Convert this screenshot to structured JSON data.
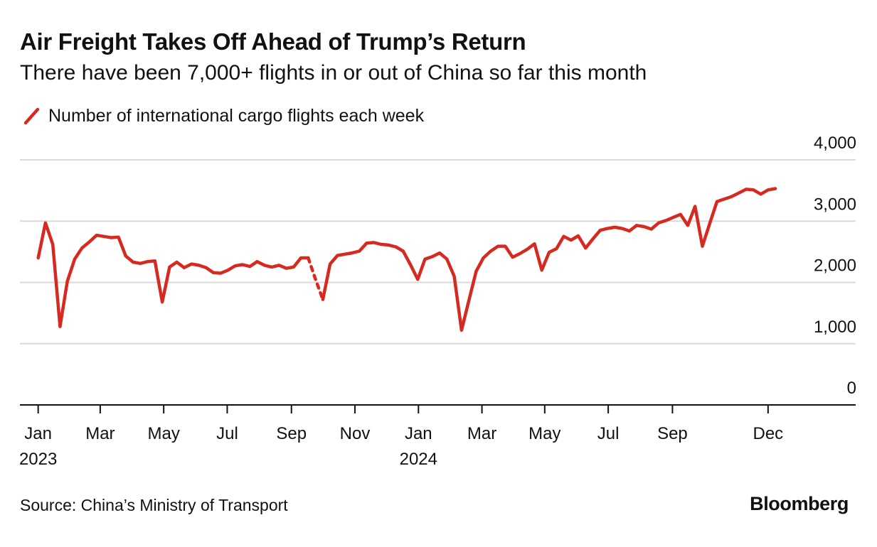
{
  "header": {
    "title": "Air Freight Takes Off Ahead of Trump’s Return",
    "subtitle": "There have been 7,000+ flights in or out of China so far this month"
  },
  "footer": {
    "source": "Source: China’s Ministry of Transport",
    "brand": "Bloomberg"
  },
  "colors": {
    "series": "#d62a20",
    "grid": "#d9d9d9",
    "axis": "#111111",
    "text": "#111111"
  },
  "chart_data": {
    "type": "line",
    "title": "Air Freight Takes Off Ahead of Trump’s Return",
    "subtitle": "There have been 7,000+ flights in or out of China so far this month",
    "xlabel": "",
    "ylabel": "",
    "ylim": [
      0,
      4000
    ],
    "xlim_weeks": [
      -2.5,
      112
    ],
    "grid": true,
    "legend_position": "top-left",
    "y_ticks": [
      {
        "value": 0,
        "label": "0"
      },
      {
        "value": 1000,
        "label": "1,000"
      },
      {
        "value": 2000,
        "label": "2,000"
      },
      {
        "value": 3000,
        "label": "3,000"
      },
      {
        "value": 4000,
        "label": "4,000"
      }
    ],
    "x_ticks": [
      {
        "week": 0,
        "label": "Jan",
        "year": "2023"
      },
      {
        "week": 8.5,
        "label": "Mar",
        "year": ""
      },
      {
        "week": 17.2,
        "label": "May",
        "year": ""
      },
      {
        "week": 25.9,
        "label": "Jul",
        "year": ""
      },
      {
        "week": 34.7,
        "label": "Sep",
        "year": ""
      },
      {
        "week": 43.4,
        "label": "Nov",
        "year": ""
      },
      {
        "week": 52.1,
        "label": "Jan",
        "year": "2024"
      },
      {
        "week": 60.8,
        "label": "Mar",
        "year": ""
      },
      {
        "week": 69.4,
        "label": "May",
        "year": ""
      },
      {
        "week": 78.1,
        "label": "Jul",
        "year": ""
      },
      {
        "week": 86.9,
        "label": "Sep",
        "year": ""
      },
      {
        "week": 100.0,
        "label": "Dec",
        "year": ""
      }
    ],
    "series": [
      {
        "name": "Number of international cargo flights each week",
        "gaps": [
          [
            37,
            39
          ]
        ],
        "points": [
          [
            0,
            2400
          ],
          [
            1,
            2970
          ],
          [
            2,
            2620
          ],
          [
            3,
            1280
          ],
          [
            4,
            2020
          ],
          [
            5,
            2380
          ],
          [
            6,
            2560
          ],
          [
            7,
            2660
          ],
          [
            8,
            2770
          ],
          [
            9,
            2750
          ],
          [
            10,
            2730
          ],
          [
            11,
            2740
          ],
          [
            12,
            2430
          ],
          [
            13,
            2330
          ],
          [
            14,
            2310
          ],
          [
            15,
            2340
          ],
          [
            16,
            2350
          ],
          [
            17,
            1680
          ],
          [
            18,
            2250
          ],
          [
            19,
            2330
          ],
          [
            20,
            2240
          ],
          [
            21,
            2300
          ],
          [
            22,
            2280
          ],
          [
            23,
            2240
          ],
          [
            24,
            2160
          ],
          [
            25,
            2150
          ],
          [
            26,
            2200
          ],
          [
            27,
            2270
          ],
          [
            28,
            2290
          ],
          [
            29,
            2260
          ],
          [
            30,
            2340
          ],
          [
            31,
            2280
          ],
          [
            32,
            2250
          ],
          [
            33,
            2280
          ],
          [
            34,
            2230
          ],
          [
            35,
            2250
          ],
          [
            36,
            2400
          ],
          [
            37,
            2400
          ],
          [
            38,
            2050
          ],
          [
            39,
            1720
          ],
          [
            40,
            2300
          ],
          [
            41,
            2440
          ],
          [
            42,
            2460
          ],
          [
            43,
            2480
          ],
          [
            44,
            2510
          ],
          [
            45,
            2640
          ],
          [
            46,
            2650
          ],
          [
            47,
            2620
          ],
          [
            48,
            2610
          ],
          [
            49,
            2580
          ],
          [
            50,
            2510
          ],
          [
            51,
            2290
          ],
          [
            52,
            2050
          ],
          [
            53,
            2380
          ],
          [
            54,
            2420
          ],
          [
            55,
            2480
          ],
          [
            56,
            2380
          ],
          [
            57,
            2100
          ],
          [
            58,
            1220
          ],
          [
            59,
            1700
          ],
          [
            60,
            2180
          ],
          [
            61,
            2400
          ],
          [
            62,
            2510
          ],
          [
            63,
            2590
          ],
          [
            64,
            2590
          ],
          [
            65,
            2410
          ],
          [
            66,
            2470
          ],
          [
            67,
            2540
          ],
          [
            68,
            2630
          ],
          [
            69,
            2200
          ],
          [
            70,
            2490
          ],
          [
            71,
            2550
          ],
          [
            72,
            2750
          ],
          [
            73,
            2690
          ],
          [
            74,
            2760
          ],
          [
            75,
            2560
          ],
          [
            76,
            2710
          ],
          [
            77,
            2850
          ],
          [
            78,
            2880
          ],
          [
            79,
            2900
          ],
          [
            80,
            2880
          ],
          [
            81,
            2840
          ],
          [
            82,
            2930
          ],
          [
            83,
            2910
          ],
          [
            84,
            2870
          ],
          [
            85,
            2970
          ],
          [
            86,
            3010
          ],
          [
            87,
            3060
          ],
          [
            88,
            3110
          ],
          [
            89,
            2930
          ],
          [
            90,
            3240
          ],
          [
            91,
            2590
          ],
          [
            92,
            2960
          ],
          [
            93,
            3320
          ],
          [
            94,
            3360
          ],
          [
            95,
            3400
          ],
          [
            96,
            3460
          ],
          [
            97,
            3520
          ],
          [
            98,
            3510
          ],
          [
            99,
            3440
          ],
          [
            100,
            3510
          ],
          [
            101,
            3530
          ]
        ]
      }
    ]
  }
}
